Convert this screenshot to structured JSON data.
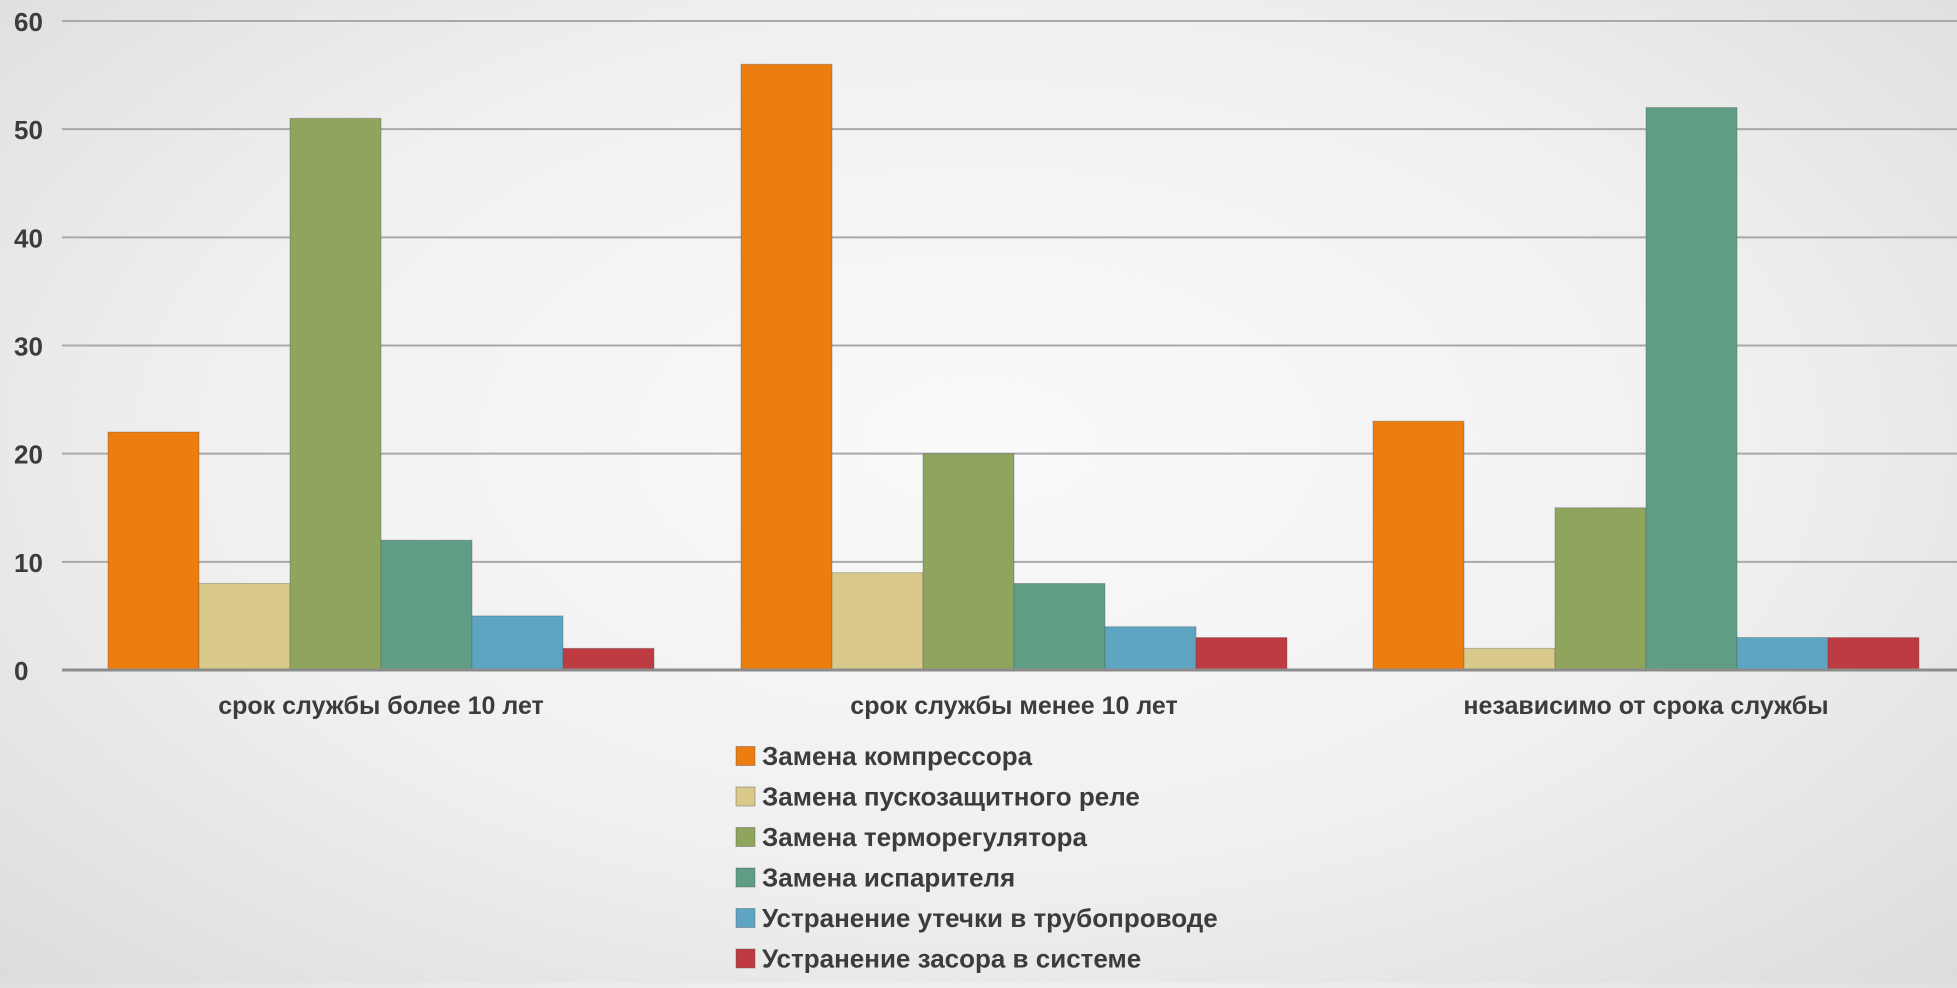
{
  "chart_data": {
    "type": "bar",
    "categories": [
      "срок службы более 10 лет",
      "срок службы менее 10 лет",
      "независимо от срока службы"
    ],
    "series": [
      {
        "name": "Замена компрессора",
        "color": "#ed7d0e",
        "values": [
          22,
          56,
          23
        ]
      },
      {
        "name": "Замена пускозащитного реле",
        "color": "#d9c98a",
        "values": [
          8,
          9,
          2
        ]
      },
      {
        "name": "Замена терморегулятора",
        "color": "#8fa55e",
        "values": [
          51,
          20,
          15
        ]
      },
      {
        "name": "Замена испарителя",
        "color": "#5f9e85",
        "values": [
          12,
          8,
          52
        ]
      },
      {
        "name": "Устранение утечки в трубопроводе",
        "color": "#5ea5c4",
        "values": [
          5,
          4,
          3
        ]
      },
      {
        "name": "Устранение засора в системе",
        "color": "#bd3b41",
        "values": [
          2,
          3,
          3
        ]
      }
    ],
    "yticks": [
      "0",
      "10",
      "20",
      "30",
      "40",
      "50",
      "60"
    ],
    "ylim": [
      0,
      60
    ],
    "grid": true,
    "legend_position": "bottom-center",
    "title": "",
    "xlabel": "",
    "ylabel": ""
  }
}
